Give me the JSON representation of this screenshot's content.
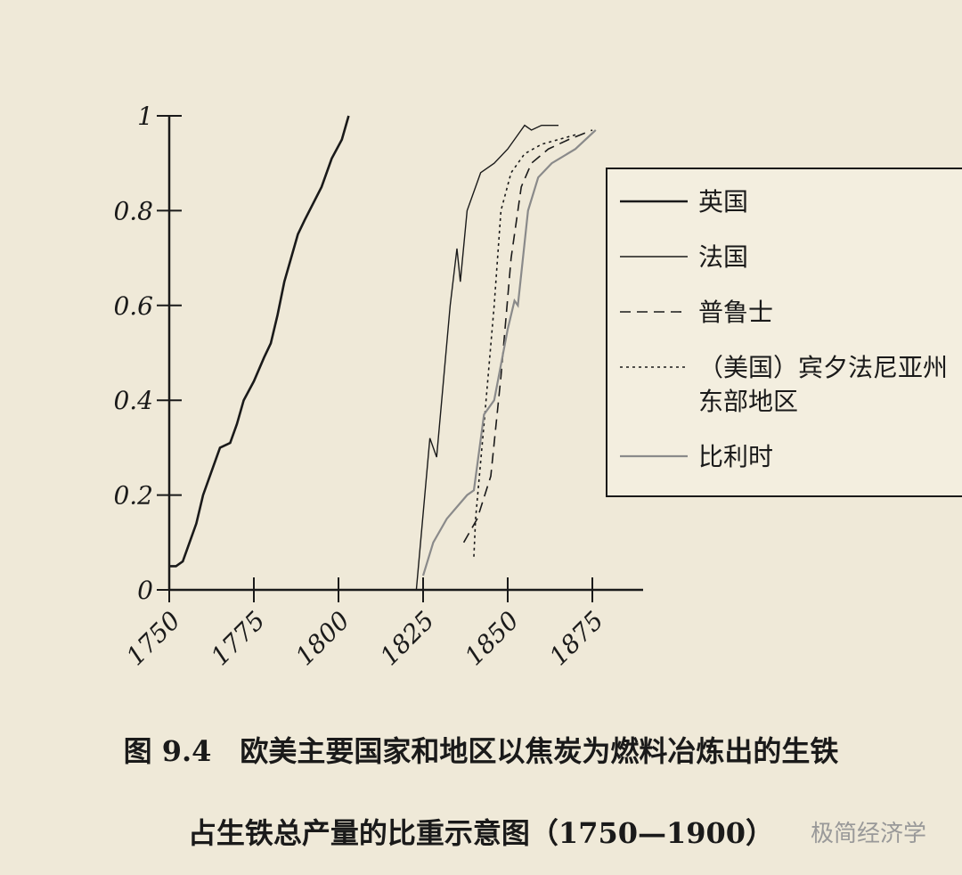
{
  "chart_data": {
    "type": "line",
    "caption": [
      "图 9.4　欧美主要国家和地区以焦炭为燃料冶炼出的生铁",
      "占生铁总产量的比重示意图（1750—1900）"
    ],
    "watermark": "极简经济学",
    "xlim": [
      1750,
      1890
    ],
    "xticks": [
      1750,
      1775,
      1800,
      1825,
      1850,
      1875
    ],
    "ylim": [
      0,
      1
    ],
    "yticks": [
      0,
      0.2,
      0.4,
      0.6,
      0.8,
      1
    ],
    "series": [
      {
        "name": "英国",
        "color": "#1a1a1a",
        "style": "solid",
        "linewidth": 2.6,
        "x": [
          1750,
          1752,
          1754,
          1756,
          1758,
          1760,
          1762,
          1765,
          1768,
          1770,
          1772,
          1775,
          1778,
          1780,
          1782,
          1784,
          1786,
          1788,
          1790,
          1795,
          1798,
          1801,
          1803
        ],
        "values": [
          0.05,
          0.05,
          0.06,
          0.1,
          0.14,
          0.2,
          0.24,
          0.3,
          0.31,
          0.35,
          0.4,
          0.44,
          0.49,
          0.52,
          0.58,
          0.65,
          0.7,
          0.75,
          0.78,
          0.85,
          0.91,
          0.95,
          1.0
        ]
      },
      {
        "name": "法国",
        "color": "#1a1a1a",
        "style": "solid",
        "linewidth": 1.4,
        "x": [
          1823,
          1827,
          1829,
          1833,
          1835,
          1836,
          1838,
          1842,
          1846,
          1850,
          1853,
          1855,
          1857,
          1860,
          1865
        ],
        "values": [
          0,
          0.32,
          0.28,
          0.6,
          0.72,
          0.65,
          0.8,
          0.88,
          0.9,
          0.93,
          0.96,
          0.98,
          0.97,
          0.98,
          0.98
        ]
      },
      {
        "name": "普鲁士",
        "color": "#1a1a1a",
        "style": "dashed",
        "linewidth": 1.6,
        "x": [
          1837,
          1841,
          1845,
          1848,
          1851,
          1854,
          1857,
          1862,
          1868,
          1875
        ],
        "values": [
          0.1,
          0.15,
          0.24,
          0.45,
          0.7,
          0.85,
          0.9,
          0.93,
          0.95,
          0.97
        ]
      },
      {
        "name": "（美国）宾夕法尼亚州东部地区",
        "color": "#1a1a1a",
        "style": "dotted",
        "linewidth": 1.6,
        "x": [
          1840,
          1840.5,
          1843,
          1846,
          1848,
          1851,
          1855,
          1860,
          1870
        ],
        "values": [
          0.07,
          0.15,
          0.35,
          0.6,
          0.8,
          0.88,
          0.92,
          0.94,
          0.96
        ]
      },
      {
        "name": "比利时",
        "color": "#8a8a8a",
        "style": "solid",
        "linewidth": 2.2,
        "x": [
          1825,
          1828,
          1832,
          1838,
          1840,
          1843,
          1846,
          1850,
          1852,
          1853,
          1856,
          1859,
          1863,
          1870,
          1876
        ],
        "values": [
          0.03,
          0.1,
          0.15,
          0.2,
          0.21,
          0.37,
          0.4,
          0.55,
          0.61,
          0.6,
          0.8,
          0.87,
          0.9,
          0.93,
          0.97
        ]
      }
    ]
  }
}
